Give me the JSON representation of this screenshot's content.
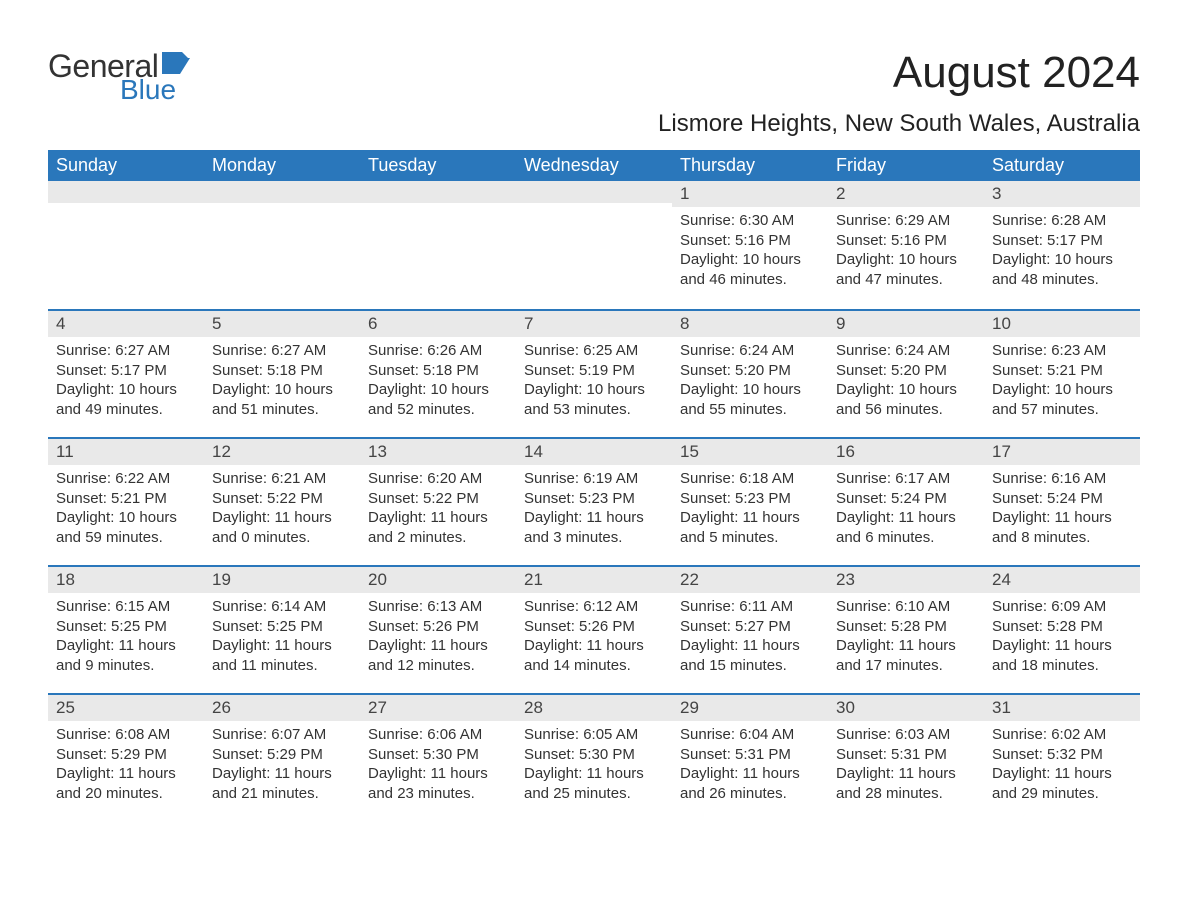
{
  "brand": {
    "word1": "General",
    "word2": "Blue",
    "accent_color": "#2a77bb"
  },
  "title": "August 2024",
  "location": "Lismore Heights, New South Wales, Australia",
  "colors": {
    "header_bg": "#2a77bb",
    "header_text": "#ffffff",
    "daynum_bg": "#e9e9e9",
    "week_divider": "#2a77bb",
    "text": "#333333",
    "background": "#ffffff"
  },
  "weekdays": [
    "Sunday",
    "Monday",
    "Tuesday",
    "Wednesday",
    "Thursday",
    "Friday",
    "Saturday"
  ],
  "weeks": [
    [
      {
        "n": "",
        "sunrise": "",
        "sunset": "",
        "daylight": ""
      },
      {
        "n": "",
        "sunrise": "",
        "sunset": "",
        "daylight": ""
      },
      {
        "n": "",
        "sunrise": "",
        "sunset": "",
        "daylight": ""
      },
      {
        "n": "",
        "sunrise": "",
        "sunset": "",
        "daylight": ""
      },
      {
        "n": "1",
        "sunrise": "Sunrise: 6:30 AM",
        "sunset": "Sunset: 5:16 PM",
        "daylight": "Daylight: 10 hours and 46 minutes."
      },
      {
        "n": "2",
        "sunrise": "Sunrise: 6:29 AM",
        "sunset": "Sunset: 5:16 PM",
        "daylight": "Daylight: 10 hours and 47 minutes."
      },
      {
        "n": "3",
        "sunrise": "Sunrise: 6:28 AM",
        "sunset": "Sunset: 5:17 PM",
        "daylight": "Daylight: 10 hours and 48 minutes."
      }
    ],
    [
      {
        "n": "4",
        "sunrise": "Sunrise: 6:27 AM",
        "sunset": "Sunset: 5:17 PM",
        "daylight": "Daylight: 10 hours and 49 minutes."
      },
      {
        "n": "5",
        "sunrise": "Sunrise: 6:27 AM",
        "sunset": "Sunset: 5:18 PM",
        "daylight": "Daylight: 10 hours and 51 minutes."
      },
      {
        "n": "6",
        "sunrise": "Sunrise: 6:26 AM",
        "sunset": "Sunset: 5:18 PM",
        "daylight": "Daylight: 10 hours and 52 minutes."
      },
      {
        "n": "7",
        "sunrise": "Sunrise: 6:25 AM",
        "sunset": "Sunset: 5:19 PM",
        "daylight": "Daylight: 10 hours and 53 minutes."
      },
      {
        "n": "8",
        "sunrise": "Sunrise: 6:24 AM",
        "sunset": "Sunset: 5:20 PM",
        "daylight": "Daylight: 10 hours and 55 minutes."
      },
      {
        "n": "9",
        "sunrise": "Sunrise: 6:24 AM",
        "sunset": "Sunset: 5:20 PM",
        "daylight": "Daylight: 10 hours and 56 minutes."
      },
      {
        "n": "10",
        "sunrise": "Sunrise: 6:23 AM",
        "sunset": "Sunset: 5:21 PM",
        "daylight": "Daylight: 10 hours and 57 minutes."
      }
    ],
    [
      {
        "n": "11",
        "sunrise": "Sunrise: 6:22 AM",
        "sunset": "Sunset: 5:21 PM",
        "daylight": "Daylight: 10 hours and 59 minutes."
      },
      {
        "n": "12",
        "sunrise": "Sunrise: 6:21 AM",
        "sunset": "Sunset: 5:22 PM",
        "daylight": "Daylight: 11 hours and 0 minutes."
      },
      {
        "n": "13",
        "sunrise": "Sunrise: 6:20 AM",
        "sunset": "Sunset: 5:22 PM",
        "daylight": "Daylight: 11 hours and 2 minutes."
      },
      {
        "n": "14",
        "sunrise": "Sunrise: 6:19 AM",
        "sunset": "Sunset: 5:23 PM",
        "daylight": "Daylight: 11 hours and 3 minutes."
      },
      {
        "n": "15",
        "sunrise": "Sunrise: 6:18 AM",
        "sunset": "Sunset: 5:23 PM",
        "daylight": "Daylight: 11 hours and 5 minutes."
      },
      {
        "n": "16",
        "sunrise": "Sunrise: 6:17 AM",
        "sunset": "Sunset: 5:24 PM",
        "daylight": "Daylight: 11 hours and 6 minutes."
      },
      {
        "n": "17",
        "sunrise": "Sunrise: 6:16 AM",
        "sunset": "Sunset: 5:24 PM",
        "daylight": "Daylight: 11 hours and 8 minutes."
      }
    ],
    [
      {
        "n": "18",
        "sunrise": "Sunrise: 6:15 AM",
        "sunset": "Sunset: 5:25 PM",
        "daylight": "Daylight: 11 hours and 9 minutes."
      },
      {
        "n": "19",
        "sunrise": "Sunrise: 6:14 AM",
        "sunset": "Sunset: 5:25 PM",
        "daylight": "Daylight: 11 hours and 11 minutes."
      },
      {
        "n": "20",
        "sunrise": "Sunrise: 6:13 AM",
        "sunset": "Sunset: 5:26 PM",
        "daylight": "Daylight: 11 hours and 12 minutes."
      },
      {
        "n": "21",
        "sunrise": "Sunrise: 6:12 AM",
        "sunset": "Sunset: 5:26 PM",
        "daylight": "Daylight: 11 hours and 14 minutes."
      },
      {
        "n": "22",
        "sunrise": "Sunrise: 6:11 AM",
        "sunset": "Sunset: 5:27 PM",
        "daylight": "Daylight: 11 hours and 15 minutes."
      },
      {
        "n": "23",
        "sunrise": "Sunrise: 6:10 AM",
        "sunset": "Sunset: 5:28 PM",
        "daylight": "Daylight: 11 hours and 17 minutes."
      },
      {
        "n": "24",
        "sunrise": "Sunrise: 6:09 AM",
        "sunset": "Sunset: 5:28 PM",
        "daylight": "Daylight: 11 hours and 18 minutes."
      }
    ],
    [
      {
        "n": "25",
        "sunrise": "Sunrise: 6:08 AM",
        "sunset": "Sunset: 5:29 PM",
        "daylight": "Daylight: 11 hours and 20 minutes."
      },
      {
        "n": "26",
        "sunrise": "Sunrise: 6:07 AM",
        "sunset": "Sunset: 5:29 PM",
        "daylight": "Daylight: 11 hours and 21 minutes."
      },
      {
        "n": "27",
        "sunrise": "Sunrise: 6:06 AM",
        "sunset": "Sunset: 5:30 PM",
        "daylight": "Daylight: 11 hours and 23 minutes."
      },
      {
        "n": "28",
        "sunrise": "Sunrise: 6:05 AM",
        "sunset": "Sunset: 5:30 PM",
        "daylight": "Daylight: 11 hours and 25 minutes."
      },
      {
        "n": "29",
        "sunrise": "Sunrise: 6:04 AM",
        "sunset": "Sunset: 5:31 PM",
        "daylight": "Daylight: 11 hours and 26 minutes."
      },
      {
        "n": "30",
        "sunrise": "Sunrise: 6:03 AM",
        "sunset": "Sunset: 5:31 PM",
        "daylight": "Daylight: 11 hours and 28 minutes."
      },
      {
        "n": "31",
        "sunrise": "Sunrise: 6:02 AM",
        "sunset": "Sunset: 5:32 PM",
        "daylight": "Daylight: 11 hours and 29 minutes."
      }
    ]
  ]
}
